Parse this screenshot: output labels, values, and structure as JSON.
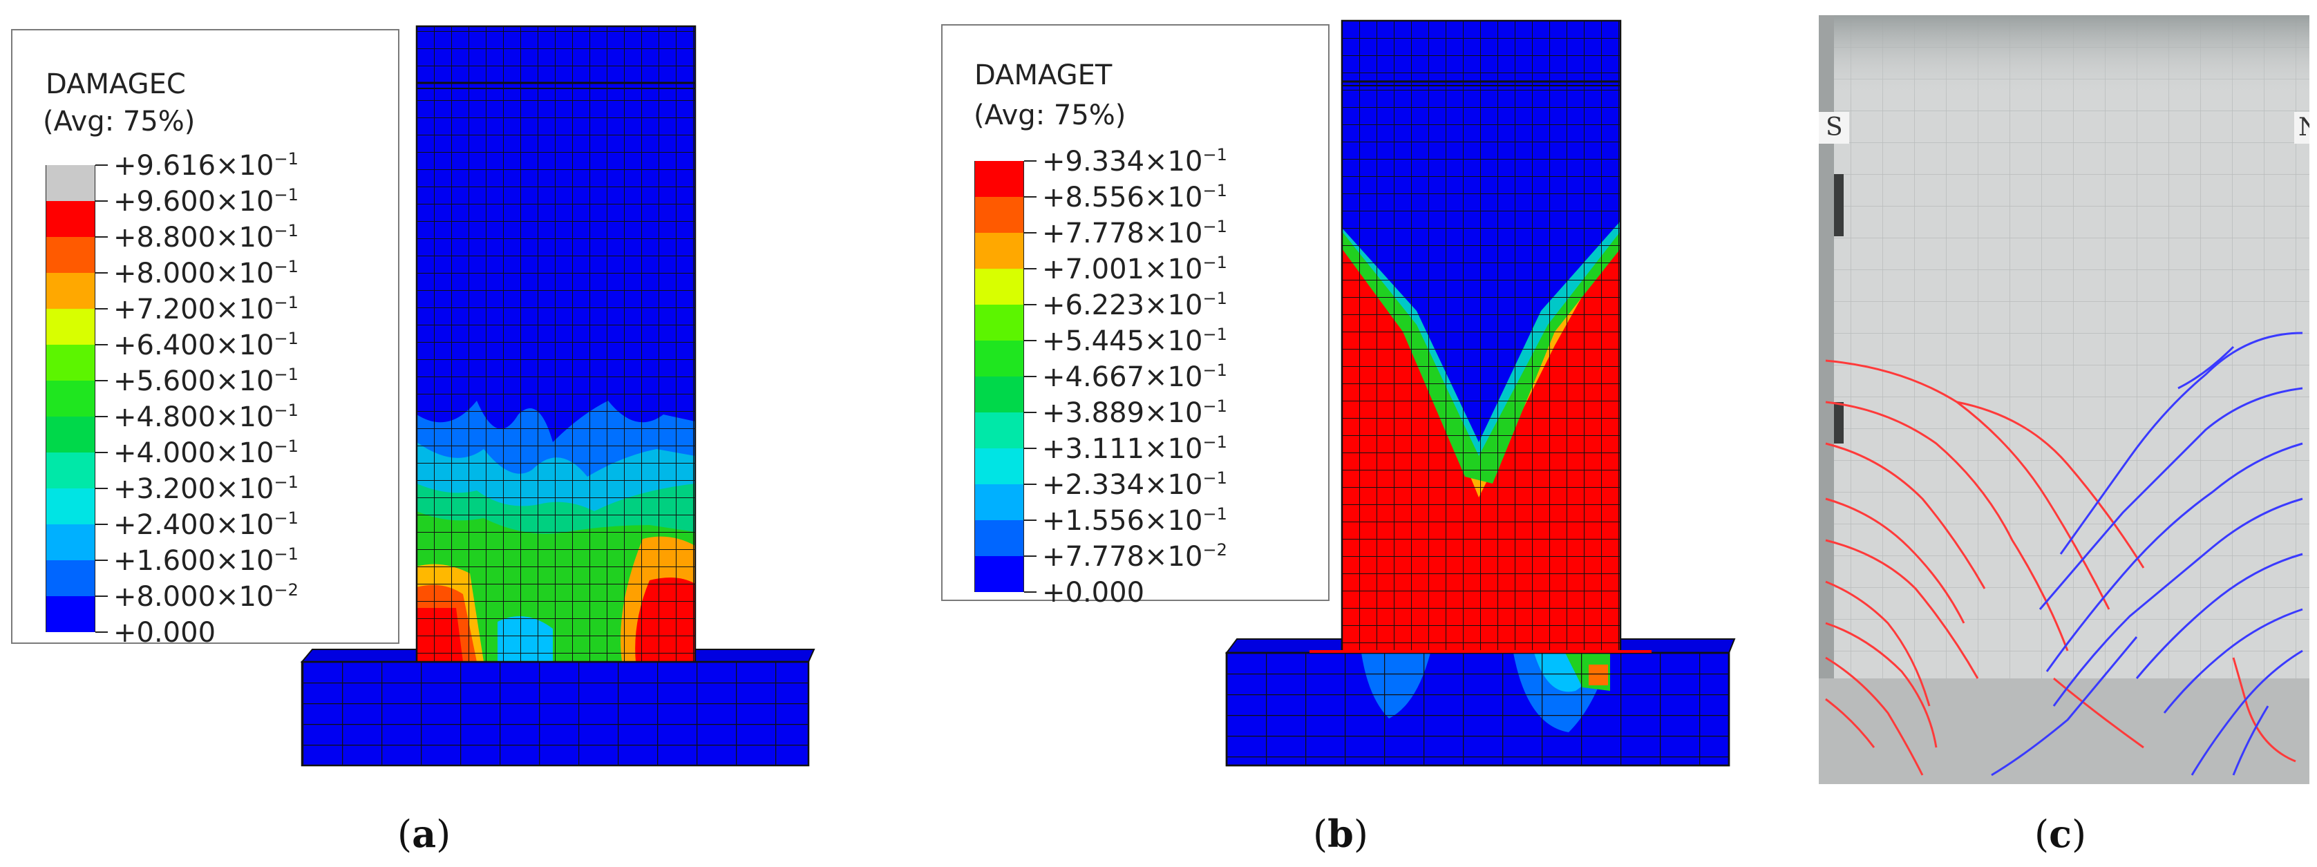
{
  "panel_a": {
    "legend_title": "DAMAGEC",
    "legend_avg": "(Avg: 75%)",
    "levels": [
      {
        "mantissa": "+9.616×10",
        "exp": "−1",
        "color": "#c9c9c9"
      },
      {
        "mantissa": "+9.600×10",
        "exp": "−1",
        "color": "#ff0000"
      },
      {
        "mantissa": "+8.800×10",
        "exp": "−1",
        "color": "#ff5a00"
      },
      {
        "mantissa": "+8.000×10",
        "exp": "−1",
        "color": "#ffa800"
      },
      {
        "mantissa": "+7.200×10",
        "exp": "−1",
        "color": "#d8ff00"
      },
      {
        "mantissa": "+6.400×10",
        "exp": "−1",
        "color": "#5cf500"
      },
      {
        "mantissa": "+5.600×10",
        "exp": "−1",
        "color": "#1fe61f"
      },
      {
        "mantissa": "+4.800×10",
        "exp": "−1",
        "color": "#00d84a"
      },
      {
        "mantissa": "+4.000×10",
        "exp": "−1",
        "color": "#00e8a8"
      },
      {
        "mantissa": "+3.200×10",
        "exp": "−1",
        "color": "#00e4e4"
      },
      {
        "mantissa": "+2.400×10",
        "exp": "−1",
        "color": "#00b0ff"
      },
      {
        "mantissa": "+1.600×10",
        "exp": "−1",
        "color": "#0066ff"
      },
      {
        "mantissa": "+8.000×10",
        "exp": "−2",
        "color": "#0000ff"
      },
      {
        "mantissa": "+0.000",
        "exp": "",
        "color": ""
      }
    ],
    "caption": "a"
  },
  "panel_b": {
    "legend_title": "DAMAGET",
    "legend_avg": "(Avg: 75%)",
    "levels": [
      {
        "mantissa": "+9.334×10",
        "exp": "−1",
        "color": "#ff0000"
      },
      {
        "mantissa": "+8.556×10",
        "exp": "−1",
        "color": "#ff5a00"
      },
      {
        "mantissa": "+7.778×10",
        "exp": "−1",
        "color": "#ffa800"
      },
      {
        "mantissa": "+7.001×10",
        "exp": "−1",
        "color": "#d8ff00"
      },
      {
        "mantissa": "+6.223×10",
        "exp": "−1",
        "color": "#5cf500"
      },
      {
        "mantissa": "+5.445×10",
        "exp": "−1",
        "color": "#1fe61f"
      },
      {
        "mantissa": "+4.667×10",
        "exp": "−1",
        "color": "#00d84a"
      },
      {
        "mantissa": "+3.889×10",
        "exp": "−1",
        "color": "#00e8a8"
      },
      {
        "mantissa": "+3.111×10",
        "exp": "−1",
        "color": "#00e4e4"
      },
      {
        "mantissa": "+2.334×10",
        "exp": "−1",
        "color": "#00b0ff"
      },
      {
        "mantissa": "+1.556×10",
        "exp": "−1",
        "color": "#0066ff"
      },
      {
        "mantissa": "+7.778×10",
        "exp": "−2",
        "color": "#0000ff"
      },
      {
        "mantissa": "+0.000",
        "exp": "",
        "color": ""
      }
    ],
    "caption": "b"
  },
  "panel_c": {
    "mark_left": "S",
    "mark_right": "N",
    "crack_color_1": "#ff3a3a",
    "crack_color_2": "#3a3aff",
    "caption": "c"
  },
  "colors": {
    "mesh_blue": "#0000f2",
    "mesh_line": "#111111",
    "red": "#ff0000",
    "photo_bg": "#d4d6d6"
  }
}
